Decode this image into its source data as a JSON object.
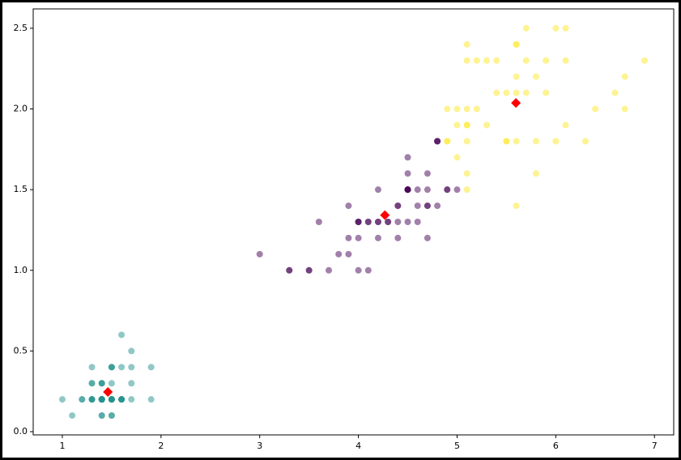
{
  "chart_data": {
    "type": "scatter",
    "xlim": [
      0.705,
      7.195
    ],
    "ylim": [
      -0.02,
      2.62
    ],
    "xticks": [
      1,
      2,
      3,
      4,
      5,
      6,
      7
    ],
    "yticks": [
      {
        "value": 0,
        "label": "0.0"
      },
      0.5,
      {
        "value": 1,
        "label": "1.0"
      },
      1.5,
      {
        "value": 2,
        "label": "2.0"
      },
      2.5
    ],
    "grid": false,
    "series": [
      {
        "color": "#21918c",
        "alpha": 0.5,
        "marker": "circle",
        "x": [
          1.4,
          1.4,
          1.3,
          1.5,
          1.4,
          1.7,
          1.4,
          1.5,
          1.4,
          1.5,
          1.5,
          1.6,
          1.4,
          1.1,
          1.2,
          1.5,
          1.3,
          1.4,
          1.7,
          1.5,
          1.7,
          1.5,
          1.0,
          1.7,
          1.9,
          1.6,
          1.6,
          1.5,
          1.4,
          1.6,
          1.6,
          1.5,
          1.5,
          1.4,
          1.5,
          1.2,
          1.3,
          1.4,
          1.3,
          1.5,
          1.3,
          1.3,
          1.3,
          1.6,
          1.9,
          1.4,
          1.6,
          1.4,
          1.5,
          1.4
        ],
        "y": [
          0.2,
          0.2,
          0.2,
          0.2,
          0.2,
          0.4,
          0.3,
          0.2,
          0.2,
          0.1,
          0.2,
          0.2,
          0.1,
          0.1,
          0.2,
          0.4,
          0.4,
          0.3,
          0.3,
          0.3,
          0.2,
          0.4,
          0.2,
          0.5,
          0.2,
          0.2,
          0.4,
          0.2,
          0.2,
          0.2,
          0.2,
          0.4,
          0.1,
          0.2,
          0.2,
          0.2,
          0.2,
          0.1,
          0.2,
          0.2,
          0.3,
          0.3,
          0.2,
          0.6,
          0.4,
          0.3,
          0.2,
          0.2,
          0.2,
          0.2
        ]
      },
      {
        "color": "#440154",
        "alpha": 0.5,
        "marker": "circle",
        "x": [
          4.7,
          4.5,
          4.9,
          4.0,
          4.6,
          4.5,
          4.7,
          3.3,
          4.6,
          3.9,
          3.5,
          4.2,
          4.0,
          4.7,
          3.6,
          4.4,
          4.5,
          4.1,
          4.5,
          3.9,
          4.8,
          4.0,
          4.9,
          4.7,
          4.3,
          4.4,
          4.8,
          4.5,
          3.5,
          3.8,
          3.7,
          3.9,
          4.5,
          4.5,
          4.7,
          4.4,
          4.1,
          4.0,
          4.4,
          4.6,
          4.0,
          3.3,
          4.2,
          4.2,
          4.2,
          4.3,
          3.0,
          4.1,
          4.5,
          5.0,
          4.8,
          4.8
        ],
        "y": [
          1.4,
          1.5,
          1.5,
          1.3,
          1.5,
          1.3,
          1.6,
          1.0,
          1.3,
          1.4,
          1.0,
          1.5,
          1.0,
          1.4,
          1.3,
          1.4,
          1.5,
          1.0,
          1.5,
          1.1,
          1.8,
          1.3,
          1.5,
          1.2,
          1.3,
          1.4,
          1.4,
          1.5,
          1.0,
          1.1,
          1.0,
          1.2,
          1.5,
          1.6,
          1.5,
          1.3,
          1.3,
          1.3,
          1.2,
          1.4,
          1.2,
          1.0,
          1.3,
          1.2,
          1.3,
          1.3,
          1.1,
          1.3,
          1.7,
          1.5,
          1.8,
          1.8
        ]
      },
      {
        "color": "#fde725",
        "alpha": 0.5,
        "marker": "circle",
        "x": [
          6.0,
          5.1,
          5.9,
          5.6,
          5.8,
          6.6,
          6.3,
          5.8,
          6.1,
          5.1,
          5.3,
          5.5,
          5.0,
          5.1,
          5.3,
          5.5,
          6.7,
          6.9,
          5.7,
          4.9,
          6.7,
          4.9,
          5.7,
          6.0,
          4.9,
          5.6,
          5.8,
          6.1,
          6.4,
          5.6,
          5.1,
          5.6,
          6.1,
          5.6,
          5.5,
          5.4,
          5.6,
          5.1,
          5.1,
          5.9,
          5.7,
          5.2,
          5.0,
          5.2,
          5.4,
          5.1,
          5.0,
          5.1
        ],
        "y": [
          2.5,
          1.9,
          2.1,
          1.8,
          2.2,
          2.1,
          1.8,
          1.8,
          2.5,
          2.0,
          1.9,
          2.1,
          2.0,
          2.4,
          2.3,
          1.8,
          2.2,
          2.3,
          2.3,
          2.0,
          2.0,
          1.8,
          2.1,
          1.8,
          1.8,
          2.1,
          1.6,
          1.9,
          2.0,
          2.2,
          1.5,
          1.4,
          2.3,
          2.4,
          1.8,
          2.1,
          2.4,
          2.3,
          1.9,
          2.3,
          2.5,
          2.3,
          1.9,
          2.0,
          2.3,
          1.8,
          1.7,
          1.6
        ]
      },
      {
        "color": "#ff0000",
        "alpha": 1,
        "marker": "diamond",
        "x": [
          1.462,
          4.269,
          5.596
        ],
        "y": [
          0.246,
          1.342,
          2.037
        ]
      }
    ]
  }
}
